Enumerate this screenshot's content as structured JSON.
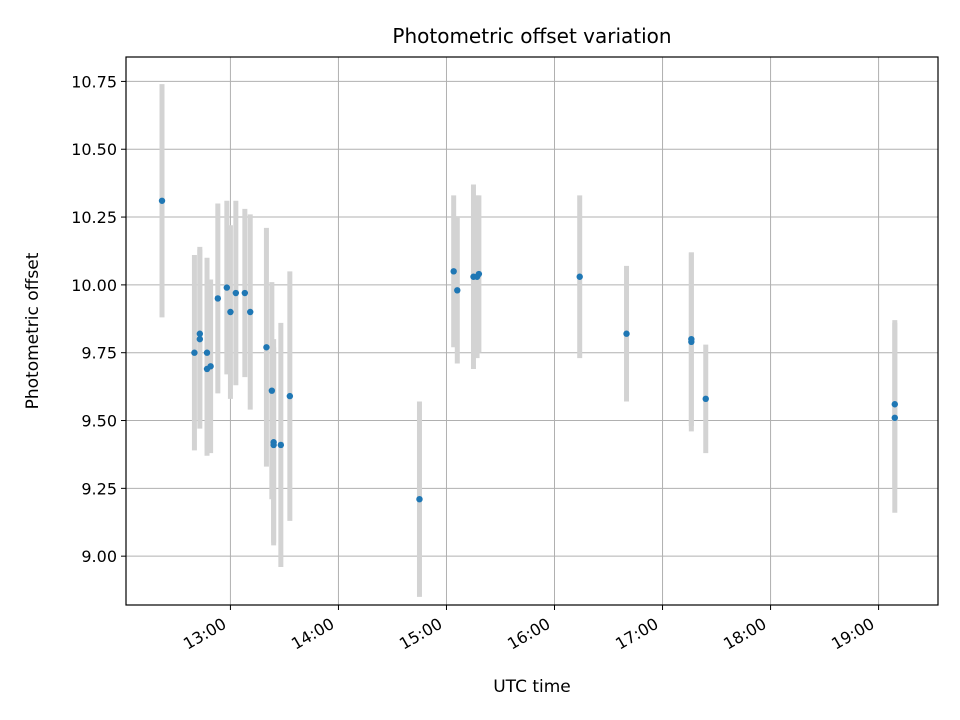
{
  "chart_data": {
    "type": "scatter",
    "title": "Photometric offset variation",
    "xlabel": "UTC time",
    "ylabel": "Photometric offset",
    "x_axis_type": "time",
    "xlim": [
      "12:02",
      "19:33"
    ],
    "ylim": [
      8.82,
      10.84
    ],
    "x_ticks": [
      "13:00",
      "14:00",
      "15:00",
      "16:00",
      "17:00",
      "18:00",
      "19:00"
    ],
    "y_ticks": [
      "9.00",
      "9.25",
      "9.50",
      "9.75",
      "10.00",
      "10.25",
      "10.50",
      "10.75"
    ],
    "grid": true,
    "legend": "none",
    "point_color": "#1f77b4",
    "errorbar_color": "#d3d3d3",
    "points": [
      {
        "time": "12:22",
        "y": 10.31,
        "err": 0.43
      },
      {
        "time": "12:40",
        "y": 9.75,
        "err": 0.36
      },
      {
        "time": "12:43",
        "y": 9.8,
        "err": 0.33
      },
      {
        "time": "12:43",
        "y": 9.82,
        "err": 0.32
      },
      {
        "time": "12:47",
        "y": 9.69,
        "err": 0.32
      },
      {
        "time": "12:47",
        "y": 9.75,
        "err": 0.35
      },
      {
        "time": "12:49",
        "y": 9.7,
        "err": 0.32
      },
      {
        "time": "12:53",
        "y": 9.95,
        "err": 0.35
      },
      {
        "time": "12:58",
        "y": 9.99,
        "err": 0.32
      },
      {
        "time": "13:00",
        "y": 9.9,
        "err": 0.32
      },
      {
        "time": "13:03",
        "y": 9.97,
        "err": 0.34
      },
      {
        "time": "13:08",
        "y": 9.97,
        "err": 0.31
      },
      {
        "time": "13:11",
        "y": 9.9,
        "err": 0.36
      },
      {
        "time": "13:20",
        "y": 9.77,
        "err": 0.44
      },
      {
        "time": "13:23",
        "y": 9.61,
        "err": 0.4
      },
      {
        "time": "13:24",
        "y": 9.42,
        "err": 0.38
      },
      {
        "time": "13:24",
        "y": 9.41,
        "err": 0.36
      },
      {
        "time": "13:28",
        "y": 9.41,
        "err": 0.45
      },
      {
        "time": "13:33",
        "y": 9.59,
        "err": 0.46
      },
      {
        "time": "14:45",
        "y": 9.21,
        "err": 0.36
      },
      {
        "time": "15:04",
        "y": 10.05,
        "err": 0.28
      },
      {
        "time": "15:06",
        "y": 9.98,
        "err": 0.27
      },
      {
        "time": "15:15",
        "y": 10.03,
        "err": 0.34
      },
      {
        "time": "15:17",
        "y": 10.03,
        "err": 0.3
      },
      {
        "time": "15:18",
        "y": 10.04,
        "err": 0.29
      },
      {
        "time": "16:14",
        "y": 10.03,
        "err": 0.3
      },
      {
        "time": "16:40",
        "y": 9.82,
        "err": 0.25
      },
      {
        "time": "17:16",
        "y": 9.79,
        "err": 0.33
      },
      {
        "time": "17:16",
        "y": 9.8,
        "err": 0.32
      },
      {
        "time": "17:24",
        "y": 9.58,
        "err": 0.2
      },
      {
        "time": "19:09",
        "y": 9.56,
        "err": 0.31
      },
      {
        "time": "19:09",
        "y": 9.51,
        "err": 0.35
      }
    ]
  }
}
